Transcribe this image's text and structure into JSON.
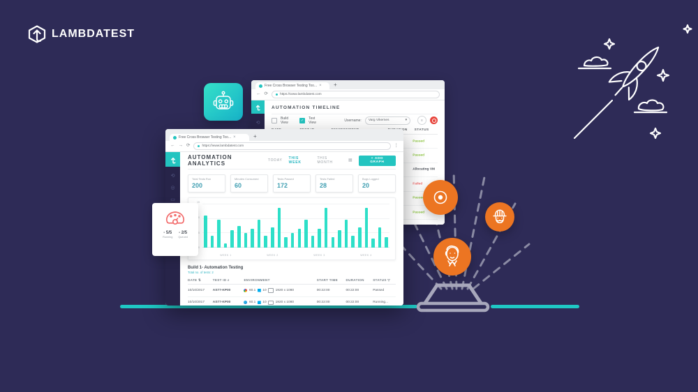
{
  "brand": {
    "name": "LAMBDATEST"
  },
  "icons": {
    "back_arrow": "←",
    "forward_arrow": "→",
    "refresh": "⟳",
    "more_vertical": "⋮",
    "close_tab": "×",
    "new_tab": "+",
    "menu": "≡",
    "caret_down": "▾",
    "sort": "⇅",
    "search": "⌕",
    "filter": "▽",
    "grid": "▦",
    "history": "⟲",
    "gear": "◎",
    "monitor": "▭",
    "check": "✓"
  },
  "back_window": {
    "tab_title": "Free Cross Browser Testing Too...",
    "url": "https://www.lambdatest.com",
    "title": "AUTOMATION TIMELINE",
    "filters": {
      "build_view": "Build View",
      "test_view": "Test View",
      "username_label": "Username:",
      "username_value": "Varg Vikernes"
    },
    "columns": [
      "DATE",
      "TEST ID",
      "ENVIRONMENT",
      "DURATION",
      "STATUS"
    ],
    "statuses": [
      "Passed",
      "Passed",
      "Allocating VM",
      "Failed",
      "Passed",
      "Passed",
      "Passed"
    ]
  },
  "front_window": {
    "tab_title": "Free Cross Browser Testing Too...",
    "url": "https://www.lambdatest.com",
    "title": "AUTOMATION ANALYTICS",
    "range_tabs": [
      "TODAY",
      "THIS WEEK",
      "THIS MONTH"
    ],
    "active_tab": "THIS WEEK",
    "add_graph_label": "+ ADD GRAPH",
    "stats": [
      {
        "label": "Total Tests Run",
        "value": "200"
      },
      {
        "label": "Minutes Consumed",
        "value": "60"
      },
      {
        "label": "Tests Passed",
        "value": "172"
      },
      {
        "label": "Tests Failed",
        "value": "28"
      },
      {
        "label": "Bugs Logged",
        "value": "20"
      }
    ],
    "build": {
      "name": "Build 1- Automation Testing",
      "subtitle": "Total no. of tests: 2"
    },
    "table": {
      "columns": [
        "DATE",
        "TEST ID",
        "ENVIRONMENT",
        "START TIME",
        "DURATION",
        "STATUS"
      ],
      "rows": [
        {
          "date": "10/10/2017",
          "test_id": "AS77-KP00",
          "browser": "chrome",
          "browser_version": "60.1",
          "os": "windows",
          "os_version": "10",
          "resolution": "1920 x 1080",
          "start_time": "00:22:00",
          "duration": "00:22:00",
          "status": "Passed"
        },
        {
          "date": "10/10/2017",
          "test_id": "AS77-KP00",
          "browser": "edge",
          "browser_version": "60.1",
          "os": "windows",
          "os_version": "10",
          "resolution": "1920 x 1080",
          "start_time": "00:22:00",
          "duration": "00:22:00",
          "status": "Running..."
        }
      ]
    }
  },
  "chart_data": {
    "type": "bar",
    "title": "",
    "xlabel": "",
    "ylabel": "",
    "categories": [
      "WEEK 1",
      "WEEK 2",
      "WEEK 3",
      "WEEK 4"
    ],
    "values": [
      11,
      4,
      9.5,
      1.5,
      6,
      7.5,
      5,
      6.5,
      9.5,
      4,
      7,
      13.5,
      3.5,
      5,
      6.5,
      9.5,
      4,
      6.5,
      13.5,
      3.5,
      6,
      9.5,
      4,
      7,
      13.5,
      3,
      7,
      3.5
    ],
    "ylim": [
      0,
      15
    ],
    "yticks": [
      15,
      10,
      5,
      0
    ],
    "grid": true,
    "legend": false
  },
  "gauge_card": {
    "running_value": "- 5/5",
    "running_label": "Running",
    "queued_value": "- 2/5",
    "queued_label": "Queued"
  },
  "hologram_badges": [
    "circle-ci",
    "travis-ci",
    "jenkins"
  ],
  "colors": {
    "background": "#2e2b57",
    "teal": "#23c4c0",
    "chart_bar": "#2ddfc8",
    "orange": "#ec7522",
    "status_green": "#8dc63f",
    "status_red": "#f26d6d",
    "gauge_red": "#f26d6d",
    "stat_value": "#419fb2"
  }
}
